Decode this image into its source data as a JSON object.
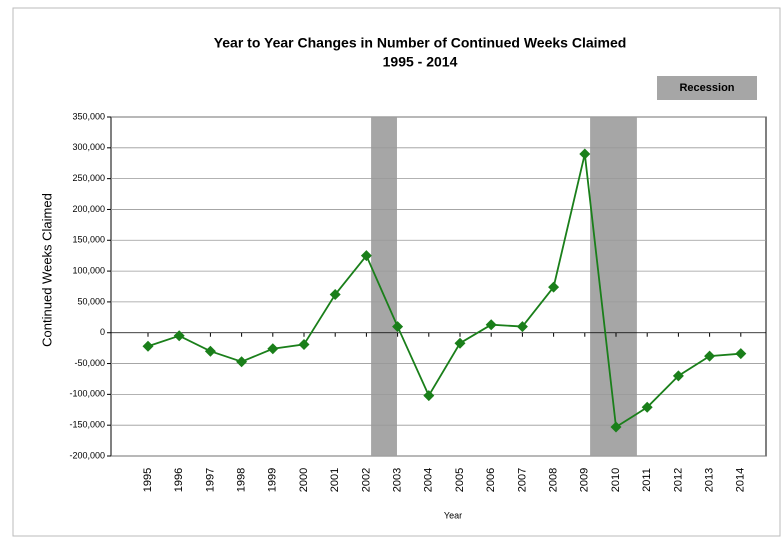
{
  "chart_data": {
    "type": "line",
    "title": "Year to Year Changes in Number of Continued Weeks Claimed",
    "subtitle": "1995 - 2014",
    "y_label": "Continued Weeks  Claimed",
    "x_label": "Year",
    "categories": [
      "1995",
      "1996",
      "1997",
      "1998",
      "1999",
      "2000",
      "2001",
      "2002",
      "2003",
      "2004",
      "2005",
      "2006",
      "2007",
      "2008",
      "2009",
      "2010",
      "2011",
      "2012",
      "2013",
      "2014"
    ],
    "series": [
      {
        "name": "Continued Weeks Claimed",
        "color": "#1a7f1a",
        "values": [
          -22000,
          -5000,
          -30000,
          -47000,
          -26000,
          -19000,
          62000,
          125000,
          10000,
          -102000,
          -17000,
          13000,
          10000,
          74000,
          290000,
          -153000,
          -121000,
          -70000,
          -38000,
          -34000
        ]
      }
    ],
    "recession": {
      "name": "Recession",
      "color": "#a6a6a6",
      "periods": [
        [
          2002.15,
          2002.98
        ],
        [
          2009.17,
          2010.67
        ]
      ]
    },
    "ylim": [
      -200000,
      350000
    ],
    "yticks": [
      {
        "value": -200000,
        "label": "-200,000"
      },
      {
        "value": -150000,
        "label": "-150,000"
      },
      {
        "value": -100000,
        "label": "-100,000"
      },
      {
        "value": -50000,
        "label": "-50,000"
      },
      0,
      {
        "value": 50000,
        "label": "50,000"
      },
      {
        "value": 100000,
        "label": "100,000"
      },
      {
        "value": 150000,
        "label": "150,000"
      },
      {
        "value": 200000,
        "label": "200,000"
      },
      {
        "value": 250000,
        "label": "250,000"
      },
      {
        "value": 300000,
        "label": "300,000"
      },
      {
        "value": 350000,
        "label": "350,000"
      }
    ],
    "grid": true
  }
}
